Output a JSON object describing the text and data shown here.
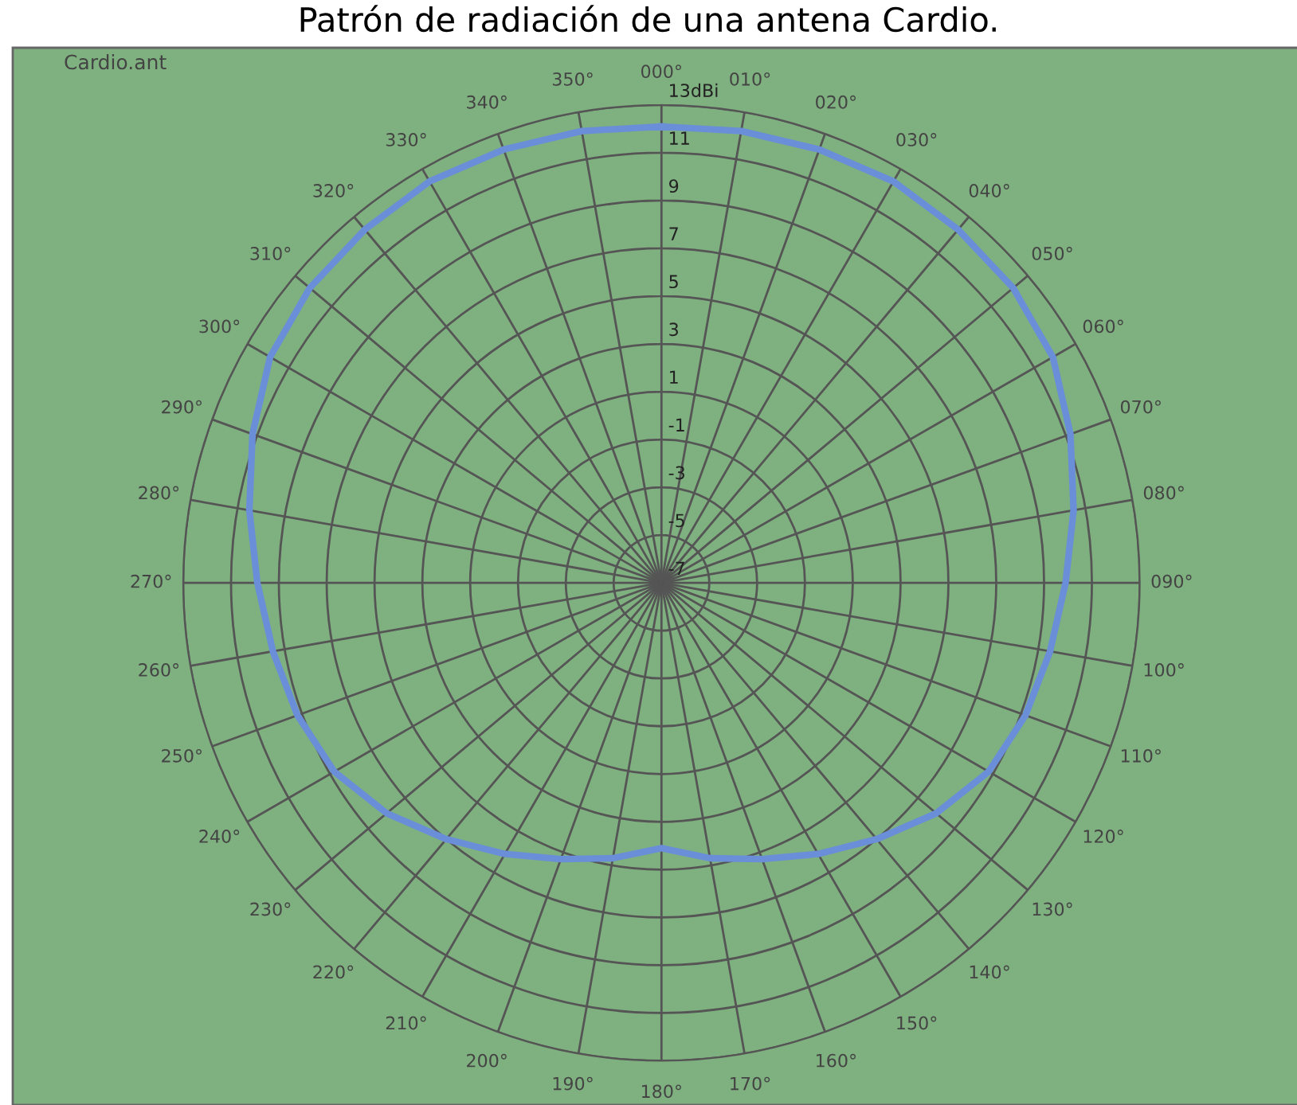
{
  "chart_data": {
    "type": "radar",
    "title": "Patrón de radiación de una antena Cardio.",
    "annotations": [
      "Cardio.ant"
    ],
    "categories": [
      "000°",
      "010°",
      "020°",
      "030°",
      "040°",
      "050°",
      "060°",
      "070°",
      "080°",
      "090°",
      "100°",
      "110°",
      "120°",
      "130°",
      "140°",
      "150°",
      "160°",
      "170°",
      "180°",
      "190°",
      "200°",
      "210°",
      "220°",
      "230°",
      "240°",
      "250°",
      "260°",
      "270°",
      "280°",
      "290°",
      "300°",
      "310°",
      "320°",
      "330°",
      "340°",
      "350°"
    ],
    "series": [
      {
        "color": "#6a8fd8",
        "values": [
          12.1,
          12.2,
          12.3,
          12.4,
          12.3,
          12.2,
          11.9,
          11.2,
          10.5,
          9.9,
          9.5,
          9.2,
          8.8,
          8.0,
          7.0,
          6.1,
          5.3,
          4.7,
          4.1,
          4.7,
          5.3,
          6.1,
          7.0,
          8.0,
          8.8,
          9.2,
          9.5,
          9.9,
          10.5,
          11.2,
          11.9,
          12.2,
          12.3,
          12.4,
          12.3,
          12.2
        ]
      }
    ],
    "ylim": [
      -7,
      13
    ],
    "yticks": [
      -7,
      -5,
      -3,
      -1,
      1,
      3,
      5,
      7,
      9,
      11,
      {
        "value": 13,
        "label": "13dBi"
      }
    ],
    "grid": true,
    "line_style": "solid"
  }
}
